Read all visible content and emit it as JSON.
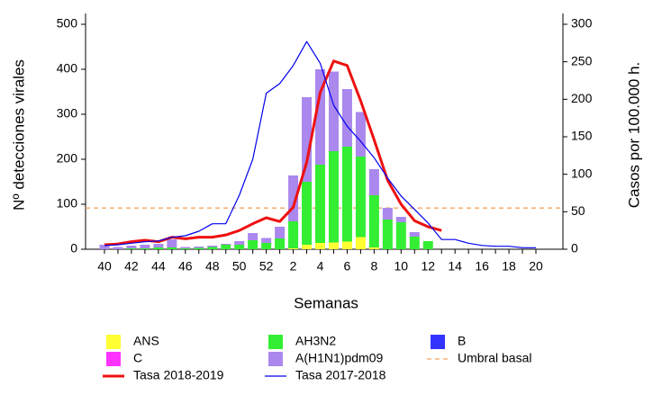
{
  "chart_data": {
    "type": "bar",
    "stacked": true,
    "x_label": "Semanas",
    "y_label": "Nº detecciones virales",
    "y2_label": "Casos por 100.000 h.",
    "categories": [
      "40",
      null,
      "42",
      null,
      "44",
      null,
      "46",
      null,
      "48",
      null,
      "50",
      null,
      "52",
      null,
      "2",
      null,
      "4",
      null,
      "6",
      null,
      "8",
      null,
      "10",
      null,
      "12",
      null,
      "14",
      null,
      "16",
      null,
      "18",
      null,
      "20"
    ],
    "ylim": [
      0,
      500
    ],
    "yticks": [
      0,
      100,
      200,
      300,
      400,
      500
    ],
    "y2lim": [
      0,
      300
    ],
    "y2ticks": [
      0,
      50,
      100,
      150,
      200,
      250,
      300
    ],
    "series": [
      {
        "name": "ANS",
        "color": "#ffff33",
        "values": [
          0,
          0,
          0,
          0,
          0,
          0,
          0,
          0,
          0,
          0,
          0,
          0,
          0,
          0,
          2,
          10,
          14,
          15,
          17,
          27,
          4,
          0,
          0,
          0,
          0,
          null,
          null,
          null,
          null,
          null,
          null,
          null,
          null
        ]
      },
      {
        "name": "C",
        "color": "#ff33ff",
        "values": [
          0,
          0,
          0,
          0,
          0,
          0,
          0,
          0,
          0,
          0,
          0,
          0,
          0,
          0,
          0,
          0,
          0,
          0,
          0,
          0,
          0,
          0,
          0,
          0,
          0,
          null,
          null,
          null,
          null,
          null,
          null,
          null,
          null
        ]
      },
      {
        "name": "AH3N2",
        "color": "#33ee33",
        "values": [
          0,
          0,
          2,
          2,
          4,
          4,
          2,
          3,
          5,
          10,
          10,
          20,
          14,
          24,
          60,
          140,
          174,
          203,
          211,
          179,
          116,
          66,
          60,
          28,
          18,
          null,
          null,
          null,
          null,
          null,
          null,
          null,
          null
        ]
      },
      {
        "name": "A(H1N1)pdm09",
        "color": "#aa88ee",
        "values": [
          10,
          5,
          6,
          8,
          8,
          18,
          3,
          3,
          3,
          2,
          8,
          16,
          11,
          26,
          102,
          188,
          212,
          177,
          128,
          99,
          58,
          26,
          12,
          10,
          0,
          null,
          null,
          null,
          null,
          null,
          null,
          null,
          null
        ]
      },
      {
        "name": "B",
        "color": "#3333ff",
        "values": [
          0,
          0,
          0,
          0,
          0,
          0,
          0,
          0,
          0,
          0,
          0,
          0,
          0,
          0,
          0,
          0,
          0,
          0,
          0,
          0,
          0,
          0,
          0,
          0,
          0,
          null,
          null,
          null,
          null,
          null,
          null,
          null,
          null
        ]
      }
    ],
    "lines": [
      {
        "name": "Tasa 2018-2019",
        "color": "#ee1111",
        "axis": "y2",
        "values": [
          6,
          7,
          10,
          12,
          10,
          16,
          14,
          16,
          16,
          19,
          25,
          34,
          42,
          37,
          56,
          116,
          209,
          251,
          245,
          198,
          146,
          92,
          60,
          38,
          30,
          25,
          null,
          null,
          null,
          null,
          null,
          null,
          null
        ]
      },
      {
        "name": "Tasa 2017-2018",
        "color": "#0000ee",
        "axis": "y2",
        "values": [
          5,
          6,
          8,
          10,
          11,
          16,
          18,
          24,
          34,
          34,
          72,
          120,
          208,
          221,
          245,
          277,
          248,
          192,
          164,
          144,
          122,
          95,
          71,
          53,
          35,
          13,
          13,
          8,
          5,
          4,
          4,
          2,
          2
        ]
      }
    ],
    "threshold": {
      "name": "Umbral basal",
      "color": "#f4a460",
      "axis": "y2",
      "value": 55
    }
  }
}
